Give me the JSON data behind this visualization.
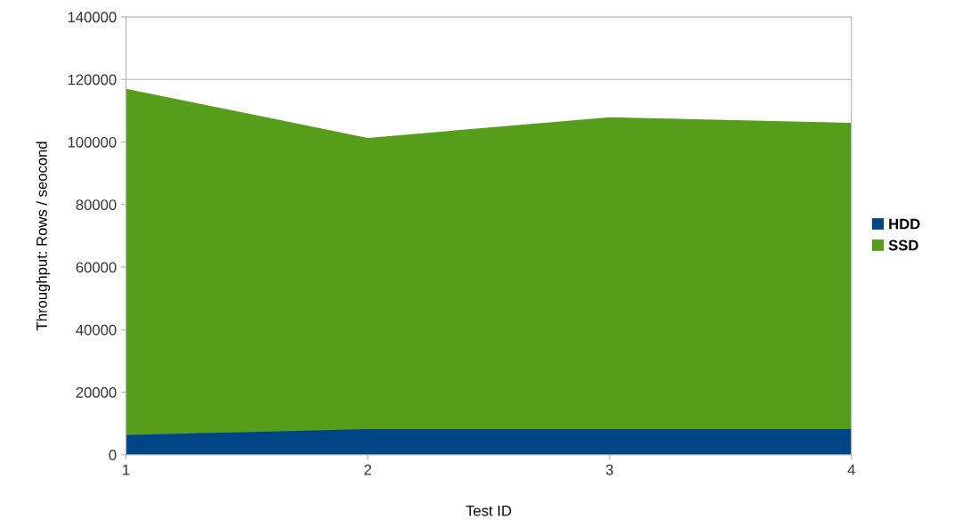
{
  "chart_data": {
    "type": "area",
    "xlabel": "Test ID",
    "ylabel": "Throughput: Rows / seocond",
    "x": [
      1,
      2,
      3,
      4
    ],
    "series": [
      {
        "name": "HDD",
        "color": "#004586",
        "values": [
          6300,
          8250,
          8250,
          8250
        ]
      },
      {
        "name": "SSD",
        "color": "#579d1c",
        "values": [
          117000,
          101300,
          107900,
          106100
        ]
      }
    ],
    "xlim": [
      1,
      4
    ],
    "xticks": [
      1,
      2,
      3,
      4
    ],
    "ylim": [
      0,
      140000
    ],
    "yticks": [
      0,
      20000,
      40000,
      60000,
      80000,
      100000,
      120000,
      140000
    ],
    "grid": "y",
    "legend": "right"
  }
}
